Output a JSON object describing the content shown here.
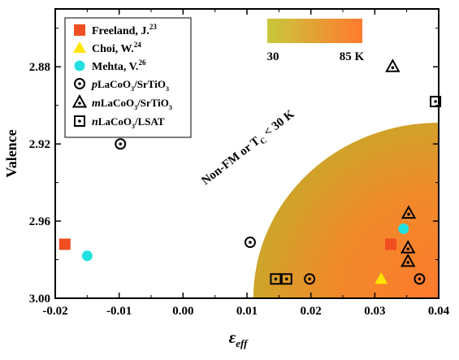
{
  "chart_data": {
    "type": "scatter",
    "xlabel_main": "ε",
    "xlabel_sub": "eff",
    "ylabel": "Valence",
    "xlim": [
      -0.02,
      0.04
    ],
    "ylim": [
      2.85,
      3.0
    ],
    "y_inverted": true,
    "x_ticks": [
      -0.02,
      -0.01,
      0.0,
      0.01,
      0.02,
      0.03,
      0.04
    ],
    "x_tick_labels": [
      "-0.02",
      "-0.01",
      "0.00",
      "0.01",
      "0.02",
      "0.03",
      "0.04"
    ],
    "y_ticks": [
      2.88,
      2.92,
      2.96,
      3.0
    ],
    "y_tick_labels": [
      "2.88",
      "2.92",
      "2.96",
      "3.00"
    ],
    "grid": false,
    "legend_position": "top-left",
    "region": {
      "label_main": "Non-FM or T",
      "label_sub": "C",
      "label_tail": " < 30 K",
      "center": [
        0.04,
        3.0
      ],
      "radius_x": 0.029,
      "radius_y": 0.091
    },
    "colorbar": {
      "min_label": "30",
      "max_label": "85 K",
      "color_low": "#c8c83c",
      "color_high": "#ff7a2e"
    },
    "series": [
      {
        "name": "Freeland, J.",
        "ref": "23",
        "marker": "filled-square",
        "color": "#f04e23",
        "points": [
          [
            -0.0185,
            2.972
          ],
          [
            0.0325,
            2.972
          ]
        ]
      },
      {
        "name": "Choi, W.",
        "ref": "24",
        "marker": "filled-triangle",
        "color": "#ffe600",
        "points": [
          [
            0.031,
            2.99
          ]
        ]
      },
      {
        "name": "Mehta, V.",
        "ref": "26",
        "marker": "filled-circle",
        "color": "#22e0e0",
        "points": [
          [
            -0.015,
            2.978
          ],
          [
            0.0345,
            2.964
          ]
        ]
      },
      {
        "prefix": "p",
        "name": "LaCoO",
        "sub": "3",
        "tail": "/SrTiO",
        "tail_sub": "3",
        "marker": "dot-circle",
        "color": "#000000",
        "points": [
          [
            -0.0098,
            2.92
          ],
          [
            0.0105,
            2.971
          ],
          [
            0.0198,
            2.99
          ],
          [
            0.037,
            2.99
          ]
        ]
      },
      {
        "prefix": "m",
        "name": "LaCoO",
        "sub": "3",
        "tail": "/SrTiO",
        "tail_sub": "3",
        "marker": "dot-triangle",
        "color": "#000000",
        "points": [
          [
            0.0328,
            2.88
          ],
          [
            0.0353,
            2.956
          ],
          [
            0.0352,
            2.974
          ],
          [
            0.0352,
            2.981
          ]
        ]
      },
      {
        "prefix": "n",
        "name": "LaCoO",
        "sub": "3",
        "tail": "/LSAT",
        "tail_sub": "",
        "marker": "dot-square",
        "color": "#000000",
        "points": [
          [
            0.0395,
            2.898
          ],
          [
            0.0145,
            2.99
          ],
          [
            0.0162,
            2.99
          ]
        ]
      }
    ]
  }
}
